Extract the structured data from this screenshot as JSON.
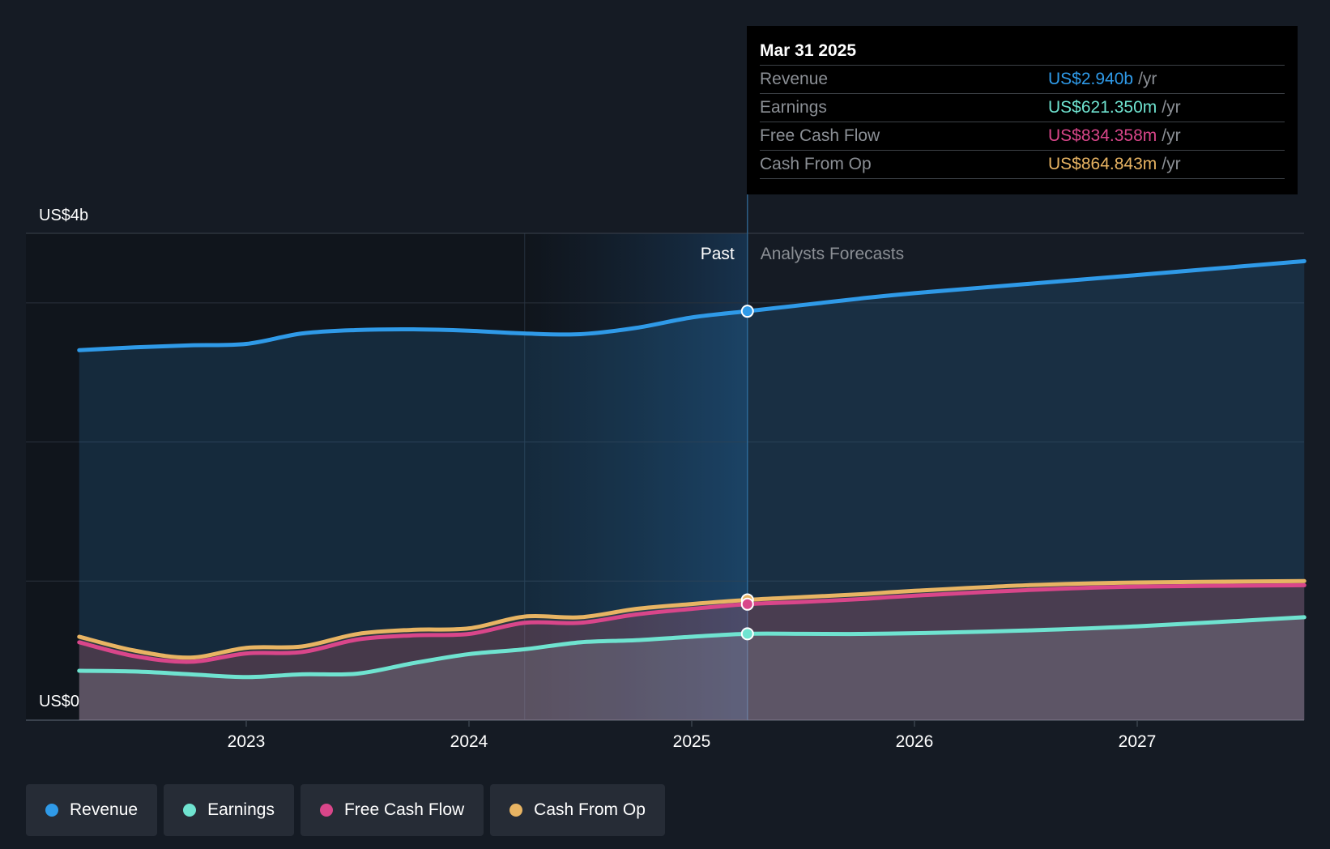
{
  "chart_data": {
    "type": "area",
    "title": "",
    "xlabel": "",
    "ylabel": "",
    "ylim": [
      0,
      3.5
    ],
    "y_ticks": [
      0,
      1,
      2,
      3,
      3.5
    ],
    "y_axis_labels": {
      "top": "US$4b",
      "bottom": "US$0"
    },
    "x_ticks": [
      2023,
      2024,
      2025,
      2026,
      2027
    ],
    "x_tick_labels": [
      "2023",
      "2024",
      "2025",
      "2026",
      "2027"
    ],
    "xlim": [
      2022.0,
      2027.75
    ],
    "past_label": "Past",
    "forecast_label": "Analysts Forecasts",
    "divider_x": 2025.25,
    "highlight_start_x": 2024.25,
    "series": [
      {
        "name": "Revenue",
        "key": "revenue",
        "color": "#2f9ae8",
        "points": [
          [
            2022.25,
            2.66
          ],
          [
            2022.5,
            2.68
          ],
          [
            2022.75,
            2.695
          ],
          [
            2023.0,
            2.705
          ],
          [
            2023.25,
            2.78
          ],
          [
            2023.5,
            2.805
          ],
          [
            2023.75,
            2.81
          ],
          [
            2024.0,
            2.8
          ],
          [
            2024.25,
            2.78
          ],
          [
            2024.5,
            2.775
          ],
          [
            2024.75,
            2.82
          ],
          [
            2025.0,
            2.895
          ],
          [
            2025.25,
            2.94
          ],
          [
            2025.5,
            2.985
          ],
          [
            2025.75,
            3.03
          ],
          [
            2026.0,
            3.07
          ],
          [
            2026.5,
            3.135
          ],
          [
            2027.0,
            3.2
          ],
          [
            2027.75,
            3.3
          ]
        ]
      },
      {
        "name": "Earnings",
        "key": "earnings",
        "color": "#6fe3d0",
        "points": [
          [
            2022.25,
            0.355
          ],
          [
            2022.5,
            0.35
          ],
          [
            2022.75,
            0.33
          ],
          [
            2023.0,
            0.31
          ],
          [
            2023.25,
            0.33
          ],
          [
            2023.5,
            0.335
          ],
          [
            2023.75,
            0.41
          ],
          [
            2024.0,
            0.475
          ],
          [
            2024.25,
            0.51
          ],
          [
            2024.5,
            0.56
          ],
          [
            2024.75,
            0.575
          ],
          [
            2025.0,
            0.6
          ],
          [
            2025.25,
            0.621
          ],
          [
            2025.5,
            0.621
          ],
          [
            2025.75,
            0.62
          ],
          [
            2026.0,
            0.625
          ],
          [
            2026.5,
            0.645
          ],
          [
            2027.0,
            0.675
          ],
          [
            2027.75,
            0.74
          ]
        ]
      },
      {
        "name": "Free Cash Flow",
        "key": "fcf",
        "color": "#d9468a",
        "points": [
          [
            2022.25,
            0.56
          ],
          [
            2022.5,
            0.46
          ],
          [
            2022.75,
            0.42
          ],
          [
            2023.0,
            0.48
          ],
          [
            2023.25,
            0.49
          ],
          [
            2023.5,
            0.58
          ],
          [
            2023.75,
            0.61
          ],
          [
            2024.0,
            0.62
          ],
          [
            2024.25,
            0.7
          ],
          [
            2024.5,
            0.7
          ],
          [
            2024.75,
            0.76
          ],
          [
            2025.0,
            0.8
          ],
          [
            2025.25,
            0.834
          ],
          [
            2025.5,
            0.85
          ],
          [
            2025.75,
            0.87
          ],
          [
            2026.0,
            0.895
          ],
          [
            2026.5,
            0.935
          ],
          [
            2027.0,
            0.96
          ],
          [
            2027.75,
            0.97
          ]
        ]
      },
      {
        "name": "Cash From Op",
        "key": "cfo",
        "color": "#e8b463",
        "points": [
          [
            2022.25,
            0.6
          ],
          [
            2022.5,
            0.5
          ],
          [
            2022.75,
            0.45
          ],
          [
            2023.0,
            0.52
          ],
          [
            2023.25,
            0.53
          ],
          [
            2023.5,
            0.62
          ],
          [
            2023.75,
            0.65
          ],
          [
            2024.0,
            0.66
          ],
          [
            2024.25,
            0.745
          ],
          [
            2024.5,
            0.74
          ],
          [
            2024.75,
            0.8
          ],
          [
            2025.0,
            0.835
          ],
          [
            2025.25,
            0.865
          ],
          [
            2025.5,
            0.885
          ],
          [
            2025.75,
            0.905
          ],
          [
            2026.0,
            0.93
          ],
          [
            2026.5,
            0.97
          ],
          [
            2027.0,
            0.99
          ],
          [
            2027.75,
            1.0
          ]
        ]
      }
    ]
  },
  "tooltip": {
    "date": "Mar 31 2025",
    "rows": [
      {
        "label": "Revenue",
        "value": "US$2.940b",
        "unit": "/yr",
        "color": "#2f9ae8"
      },
      {
        "label": "Earnings",
        "value": "US$621.350m",
        "unit": "/yr",
        "color": "#6fe3d0"
      },
      {
        "label": "Free Cash Flow",
        "value": "US$834.358m",
        "unit": "/yr",
        "color": "#d9468a"
      },
      {
        "label": "Cash From Op",
        "value": "US$864.843m",
        "unit": "/yr",
        "color": "#e8b463"
      }
    ]
  },
  "legend": [
    {
      "label": "Revenue",
      "color": "#2f9ae8"
    },
    {
      "label": "Earnings",
      "color": "#6fe3d0"
    },
    {
      "label": "Free Cash Flow",
      "color": "#d9468a"
    },
    {
      "label": "Cash From Op",
      "color": "#e8b463"
    }
  ]
}
